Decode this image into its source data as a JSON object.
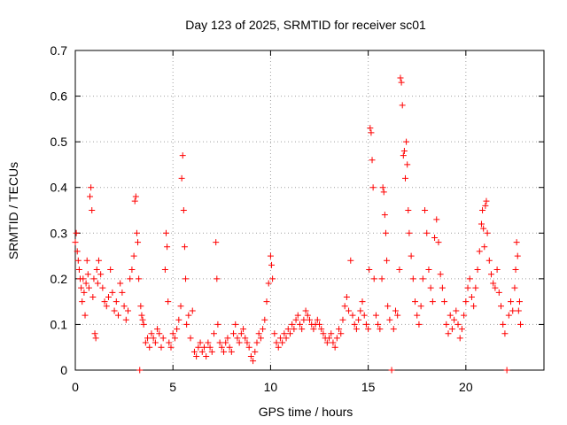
{
  "chart_data": {
    "type": "scatter",
    "title": "Day 123 of 2025, SRMTID for receiver sc01",
    "xlabel": "GPS time / hours",
    "ylabel": "SRMTID / TECUs",
    "xlim": [
      0,
      24
    ],
    "ylim": [
      0,
      0.7
    ],
    "xticks": [
      0,
      5,
      10,
      15,
      20
    ],
    "xtick_labels": [
      "0",
      "5",
      "10",
      "15",
      "20"
    ],
    "yticks": [
      0,
      0.1,
      0.2,
      0.3,
      0.4,
      0.5,
      0.6,
      0.7
    ],
    "ytick_labels": [
      "0",
      "0.1",
      "0.2",
      "0.3",
      "0.4",
      "0.5",
      "0.6",
      "0.7"
    ],
    "grid": true,
    "marker": "+",
    "color": "#ff0000",
    "series": [
      {
        "name": "sc01",
        "points": [
          [
            0.0,
            0.28
          ],
          [
            0.05,
            0.3
          ],
          [
            0.1,
            0.26
          ],
          [
            0.15,
            0.24
          ],
          [
            0.2,
            0.22
          ],
          [
            0.25,
            0.2
          ],
          [
            0.3,
            0.18
          ],
          [
            0.35,
            0.15
          ],
          [
            0.4,
            0.2
          ],
          [
            0.45,
            0.17
          ],
          [
            0.5,
            0.12
          ],
          [
            0.55,
            0.19
          ],
          [
            0.6,
            0.24
          ],
          [
            0.65,
            0.21
          ],
          [
            0.7,
            0.18
          ],
          [
            0.75,
            0.38
          ],
          [
            0.8,
            0.4
          ],
          [
            0.85,
            0.35
          ],
          [
            0.9,
            0.16
          ],
          [
            0.95,
            0.2
          ],
          [
            1.0,
            0.08
          ],
          [
            1.05,
            0.07
          ],
          [
            1.1,
            0.22
          ],
          [
            1.15,
            0.19
          ],
          [
            1.2,
            0.24
          ],
          [
            1.3,
            0.21
          ],
          [
            1.4,
            0.18
          ],
          [
            1.5,
            0.15
          ],
          [
            1.6,
            0.14
          ],
          [
            1.7,
            0.16
          ],
          [
            1.8,
            0.22
          ],
          [
            1.9,
            0.17
          ],
          [
            2.0,
            0.13
          ],
          [
            2.1,
            0.15
          ],
          [
            2.2,
            0.12
          ],
          [
            2.3,
            0.19
          ],
          [
            2.4,
            0.17
          ],
          [
            2.5,
            0.14
          ],
          [
            2.6,
            0.11
          ],
          [
            2.7,
            0.13
          ],
          [
            2.8,
            0.2
          ],
          [
            2.9,
            0.22
          ],
          [
            3.0,
            0.25
          ],
          [
            3.05,
            0.37
          ],
          [
            3.1,
            0.38
          ],
          [
            3.15,
            0.3
          ],
          [
            3.2,
            0.28
          ],
          [
            3.25,
            0.2
          ],
          [
            3.3,
            0.0
          ],
          [
            3.35,
            0.14
          ],
          [
            3.4,
            0.12
          ],
          [
            3.45,
            0.11
          ],
          [
            3.5,
            0.1
          ],
          [
            3.6,
            0.06
          ],
          [
            3.7,
            0.07
          ],
          [
            3.8,
            0.05
          ],
          [
            3.9,
            0.08
          ],
          [
            4.0,
            0.07
          ],
          [
            4.1,
            0.06
          ],
          [
            4.2,
            0.09
          ],
          [
            4.3,
            0.08
          ],
          [
            4.4,
            0.05
          ],
          [
            4.5,
            0.07
          ],
          [
            4.6,
            0.22
          ],
          [
            4.65,
            0.3
          ],
          [
            4.7,
            0.27
          ],
          [
            4.75,
            0.15
          ],
          [
            4.8,
            0.06
          ],
          [
            4.9,
            0.05
          ],
          [
            5.0,
            0.08
          ],
          [
            5.1,
            0.07
          ],
          [
            5.2,
            0.09
          ],
          [
            5.3,
            0.11
          ],
          [
            5.4,
            0.14
          ],
          [
            5.45,
            0.42
          ],
          [
            5.5,
            0.47
          ],
          [
            5.55,
            0.35
          ],
          [
            5.6,
            0.27
          ],
          [
            5.65,
            0.2
          ],
          [
            5.7,
            0.1
          ],
          [
            5.8,
            0.12
          ],
          [
            5.9,
            0.07
          ],
          [
            6.0,
            0.13
          ],
          [
            6.1,
            0.04
          ],
          [
            6.2,
            0.03
          ],
          [
            6.3,
            0.05
          ],
          [
            6.4,
            0.06
          ],
          [
            6.5,
            0.04
          ],
          [
            6.6,
            0.05
          ],
          [
            6.7,
            0.03
          ],
          [
            6.8,
            0.06
          ],
          [
            6.9,
            0.05
          ],
          [
            7.0,
            0.04
          ],
          [
            7.1,
            0.08
          ],
          [
            7.2,
            0.28
          ],
          [
            7.25,
            0.2
          ],
          [
            7.3,
            0.1
          ],
          [
            7.4,
            0.06
          ],
          [
            7.5,
            0.05
          ],
          [
            7.6,
            0.04
          ],
          [
            7.7,
            0.06
          ],
          [
            7.8,
            0.07
          ],
          [
            7.9,
            0.05
          ],
          [
            8.0,
            0.04
          ],
          [
            8.1,
            0.08
          ],
          [
            8.2,
            0.1
          ],
          [
            8.3,
            0.07
          ],
          [
            8.4,
            0.06
          ],
          [
            8.5,
            0.08
          ],
          [
            8.6,
            0.09
          ],
          [
            8.7,
            0.07
          ],
          [
            8.8,
            0.06
          ],
          [
            8.9,
            0.05
          ],
          [
            9.0,
            0.03
          ],
          [
            9.1,
            0.02
          ],
          [
            9.2,
            0.04
          ],
          [
            9.3,
            0.06
          ],
          [
            9.4,
            0.08
          ],
          [
            9.5,
            0.07
          ],
          [
            9.6,
            0.09
          ],
          [
            9.7,
            0.11
          ],
          [
            9.8,
            0.15
          ],
          [
            9.9,
            0.19
          ],
          [
            10.0,
            0.25
          ],
          [
            10.05,
            0.23
          ],
          [
            10.1,
            0.2
          ],
          [
            10.2,
            0.08
          ],
          [
            10.3,
            0.06
          ],
          [
            10.4,
            0.05
          ],
          [
            10.5,
            0.07
          ],
          [
            10.6,
            0.06
          ],
          [
            10.7,
            0.08
          ],
          [
            10.8,
            0.07
          ],
          [
            10.9,
            0.09
          ],
          [
            11.0,
            0.08
          ],
          [
            11.1,
            0.1
          ],
          [
            11.2,
            0.09
          ],
          [
            11.3,
            0.11
          ],
          [
            11.4,
            0.12
          ],
          [
            11.5,
            0.1
          ],
          [
            11.6,
            0.09
          ],
          [
            11.7,
            0.11
          ],
          [
            11.8,
            0.13
          ],
          [
            11.9,
            0.12
          ],
          [
            12.0,
            0.11
          ],
          [
            12.1,
            0.1
          ],
          [
            12.2,
            0.09
          ],
          [
            12.3,
            0.1
          ],
          [
            12.4,
            0.11
          ],
          [
            12.5,
            0.1
          ],
          [
            12.6,
            0.09
          ],
          [
            12.7,
            0.08
          ],
          [
            12.8,
            0.07
          ],
          [
            12.9,
            0.06
          ],
          [
            13.0,
            0.07
          ],
          [
            13.1,
            0.08
          ],
          [
            13.2,
            0.06
          ],
          [
            13.3,
            0.05
          ],
          [
            13.4,
            0.07
          ],
          [
            13.5,
            0.09
          ],
          [
            13.6,
            0.08
          ],
          [
            13.7,
            0.11
          ],
          [
            13.8,
            0.14
          ],
          [
            13.9,
            0.16
          ],
          [
            14.0,
            0.13
          ],
          [
            14.1,
            0.24
          ],
          [
            14.2,
            0.12
          ],
          [
            14.3,
            0.1
          ],
          [
            14.4,
            0.09
          ],
          [
            14.5,
            0.11
          ],
          [
            14.6,
            0.13
          ],
          [
            14.7,
            0.15
          ],
          [
            14.8,
            0.12
          ],
          [
            14.9,
            0.1
          ],
          [
            15.0,
            0.09
          ],
          [
            15.05,
            0.22
          ],
          [
            15.1,
            0.53
          ],
          [
            15.15,
            0.52
          ],
          [
            15.2,
            0.46
          ],
          [
            15.25,
            0.4
          ],
          [
            15.3,
            0.2
          ],
          [
            15.4,
            0.12
          ],
          [
            15.5,
            0.1
          ],
          [
            15.6,
            0.09
          ],
          [
            15.7,
            0.2
          ],
          [
            15.75,
            0.4
          ],
          [
            15.8,
            0.39
          ],
          [
            15.85,
            0.34
          ],
          [
            15.9,
            0.3
          ],
          [
            15.95,
            0.24
          ],
          [
            16.0,
            0.14
          ],
          [
            16.1,
            0.11
          ],
          [
            16.2,
            0.0
          ],
          [
            16.3,
            0.09
          ],
          [
            16.4,
            0.13
          ],
          [
            16.5,
            0.12
          ],
          [
            16.6,
            0.22
          ],
          [
            16.65,
            0.64
          ],
          [
            16.7,
            0.63
          ],
          [
            16.75,
            0.58
          ],
          [
            16.8,
            0.47
          ],
          [
            16.85,
            0.48
          ],
          [
            16.9,
            0.42
          ],
          [
            16.95,
            0.5
          ],
          [
            17.0,
            0.45
          ],
          [
            17.05,
            0.35
          ],
          [
            17.1,
            0.3
          ],
          [
            17.2,
            0.25
          ],
          [
            17.3,
            0.2
          ],
          [
            17.4,
            0.15
          ],
          [
            17.5,
            0.12
          ],
          [
            17.6,
            0.1
          ],
          [
            17.7,
            0.14
          ],
          [
            17.8,
            0.2
          ],
          [
            17.9,
            0.35
          ],
          [
            18.0,
            0.3
          ],
          [
            18.1,
            0.22
          ],
          [
            18.2,
            0.18
          ],
          [
            18.3,
            0.15
          ],
          [
            18.4,
            0.29
          ],
          [
            18.5,
            0.33
          ],
          [
            18.6,
            0.28
          ],
          [
            18.7,
            0.21
          ],
          [
            18.8,
            0.18
          ],
          [
            18.9,
            0.15
          ],
          [
            19.0,
            0.1
          ],
          [
            19.1,
            0.08
          ],
          [
            19.2,
            0.12
          ],
          [
            19.3,
            0.09
          ],
          [
            19.4,
            0.11
          ],
          [
            19.5,
            0.13
          ],
          [
            19.6,
            0.1
          ],
          [
            19.7,
            0.07
          ],
          [
            19.8,
            0.09
          ],
          [
            19.9,
            0.12
          ],
          [
            20.0,
            0.15
          ],
          [
            20.1,
            0.18
          ],
          [
            20.2,
            0.2
          ],
          [
            20.3,
            0.16
          ],
          [
            20.4,
            0.14
          ],
          [
            20.5,
            0.18
          ],
          [
            20.6,
            0.22
          ],
          [
            20.7,
            0.26
          ],
          [
            20.8,
            0.32
          ],
          [
            20.85,
            0.35
          ],
          [
            20.9,
            0.31
          ],
          [
            20.95,
            0.27
          ],
          [
            21.0,
            0.36
          ],
          [
            21.05,
            0.37
          ],
          [
            21.1,
            0.3
          ],
          [
            21.2,
            0.24
          ],
          [
            21.3,
            0.21
          ],
          [
            21.4,
            0.19
          ],
          [
            21.5,
            0.18
          ],
          [
            21.6,
            0.22
          ],
          [
            21.7,
            0.17
          ],
          [
            21.8,
            0.14
          ],
          [
            21.9,
            0.1
          ],
          [
            22.0,
            0.08
          ],
          [
            22.1,
            0.0
          ],
          [
            22.2,
            0.12
          ],
          [
            22.3,
            0.15
          ],
          [
            22.4,
            0.13
          ],
          [
            22.5,
            0.18
          ],
          [
            22.55,
            0.22
          ],
          [
            22.6,
            0.28
          ],
          [
            22.65,
            0.25
          ],
          [
            22.7,
            0.13
          ],
          [
            22.75,
            0.15
          ],
          [
            22.8,
            0.1
          ]
        ]
      }
    ]
  }
}
